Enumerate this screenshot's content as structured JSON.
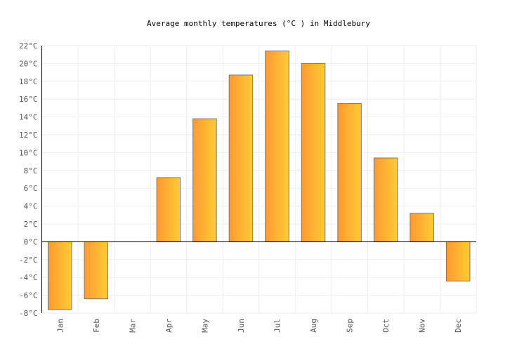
{
  "chart_data": {
    "type": "bar",
    "title": "Average monthly temperatures (°C ) in Middlebury",
    "xlabel": "",
    "ylabel": "",
    "categories": [
      "Jan",
      "Feb",
      "Mar",
      "Apr",
      "May",
      "Jun",
      "Jul",
      "Aug",
      "Sep",
      "Oct",
      "Nov",
      "Dec"
    ],
    "values": [
      -7.6,
      -6.4,
      0,
      7.2,
      13.8,
      18.7,
      21.4,
      20.0,
      15.5,
      9.4,
      3.2,
      -4.4
    ],
    "ylim": [
      -8,
      22
    ],
    "yticks": [
      "-8°C",
      "-6°C",
      "-4°C",
      "-2°C",
      "0°C",
      "2°C",
      "4°C",
      "6°C",
      "8°C",
      "10°C",
      "12°C",
      "14°C",
      "16°C",
      "18°C",
      "20°C",
      "22°C"
    ],
    "grid": true,
    "legend": "none",
    "colors": {
      "bar_start": "#ff9933",
      "bar_end": "#ffcc33",
      "bar_stroke": "#777777",
      "grid": "#eeeeee"
    }
  }
}
